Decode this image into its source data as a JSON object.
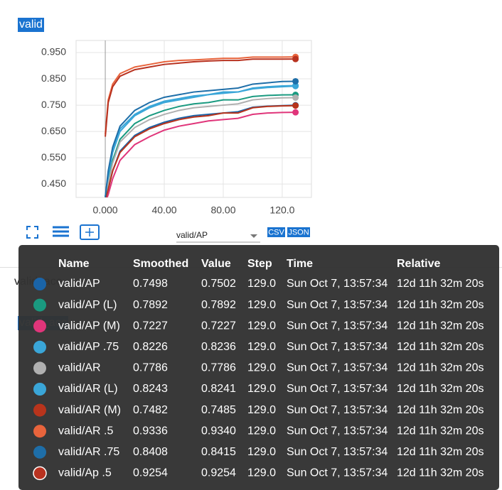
{
  "card": {
    "title": "valid",
    "run_select": "valid/AP",
    "csv": "CSV",
    "json": "JSON"
  },
  "second_card": {
    "title": "valid_acc"
  },
  "chart_data": {
    "type": "line",
    "x": [
      0,
      2,
      5,
      10,
      20,
      30,
      40,
      50,
      60,
      70,
      80,
      90,
      100,
      110,
      120,
      129
    ],
    "xlim": [
      -19.8,
      139.8
    ],
    "xticks": [
      {
        "value": 0,
        "label": "0.000"
      },
      {
        "value": 40,
        "label": "40.00"
      },
      {
        "value": 80,
        "label": "80.00"
      },
      {
        "value": 120,
        "label": "120.0"
      }
    ],
    "ylim": [
      0.399,
      0.996
    ],
    "yticks": [
      {
        "value": 0.45,
        "label": "0.450"
      },
      {
        "value": 0.55,
        "label": "0.550"
      },
      {
        "value": 0.65,
        "label": "0.650"
      },
      {
        "value": 0.75,
        "label": "0.750"
      },
      {
        "value": 0.85,
        "label": "0.850"
      },
      {
        "value": 0.95,
        "label": "0.950"
      }
    ],
    "grid": true,
    "series": [
      {
        "name": "valid/AP",
        "color": "#1a64a8",
        "values": [
          0.39,
          0.43,
          0.5,
          0.575,
          0.635,
          0.665,
          0.685,
          0.7,
          0.71,
          0.715,
          0.72,
          0.725,
          0.742,
          0.746,
          0.748,
          0.7498
        ]
      },
      {
        "name": "valid/AP (L)",
        "color": "#1a9a80",
        "values": [
          0.4,
          0.46,
          0.54,
          0.62,
          0.68,
          0.71,
          0.73,
          0.745,
          0.755,
          0.76,
          0.77,
          0.77,
          0.783,
          0.787,
          0.789,
          0.7892
        ]
      },
      {
        "name": "valid/AP (M)",
        "color": "#e0357a",
        "values": [
          0.38,
          0.41,
          0.47,
          0.54,
          0.6,
          0.63,
          0.655,
          0.67,
          0.68,
          0.69,
          0.695,
          0.7,
          0.715,
          0.72,
          0.722,
          0.7227
        ]
      },
      {
        "name": "valid/AP .75",
        "color": "#3aa6d8",
        "values": [
          0.4,
          0.48,
          0.57,
          0.65,
          0.71,
          0.74,
          0.76,
          0.77,
          0.78,
          0.79,
          0.795,
          0.8,
          0.812,
          0.817,
          0.82,
          0.8226
        ]
      },
      {
        "name": "valid/AR",
        "color": "#b0b0b0",
        "values": [
          0.4,
          0.45,
          0.53,
          0.61,
          0.665,
          0.695,
          0.715,
          0.73,
          0.74,
          0.745,
          0.75,
          0.755,
          0.77,
          0.775,
          0.778,
          0.7786
        ]
      },
      {
        "name": "valid/AR (L)",
        "color": "#3aa6d8",
        "values": [
          0.4,
          0.49,
          0.58,
          0.66,
          0.715,
          0.745,
          0.765,
          0.775,
          0.785,
          0.79,
          0.8,
          0.8,
          0.815,
          0.82,
          0.823,
          0.8243
        ]
      },
      {
        "name": "valid/AR (M)",
        "color": "#b8341c",
        "values": [
          0.39,
          0.43,
          0.5,
          0.57,
          0.63,
          0.66,
          0.68,
          0.695,
          0.705,
          0.71,
          0.72,
          0.72,
          0.74,
          0.745,
          0.747,
          0.7482
        ]
      },
      {
        "name": "valid/AR .5",
        "color": "#e8643c",
        "values": [
          0.64,
          0.77,
          0.83,
          0.87,
          0.895,
          0.905,
          0.915,
          0.92,
          0.922,
          0.925,
          0.928,
          0.928,
          0.933,
          0.933,
          0.933,
          0.9336
        ]
      },
      {
        "name": "valid/AR .75",
        "color": "#1e6ea8",
        "values": [
          0.4,
          0.5,
          0.59,
          0.67,
          0.73,
          0.76,
          0.78,
          0.79,
          0.8,
          0.805,
          0.81,
          0.815,
          0.83,
          0.835,
          0.84,
          0.8408
        ]
      },
      {
        "name": "valid/Ap .5",
        "color": "#b83220",
        "values": [
          0.63,
          0.76,
          0.82,
          0.86,
          0.885,
          0.895,
          0.905,
          0.91,
          0.915,
          0.918,
          0.92,
          0.92,
          0.925,
          0.925,
          0.925,
          0.9254
        ]
      }
    ]
  },
  "tooltip": {
    "header": [
      "Name",
      "Smoothed",
      "Value",
      "Step",
      "Time",
      "Relative"
    ],
    "rows": [
      [
        "valid/AP",
        "0.7498",
        "0.7502",
        "129.0",
        "Sun Oct 7, 13:57:34",
        "12d 11h 32m 20s"
      ],
      [
        "valid/AP (L)",
        "0.7892",
        "0.7892",
        "129.0",
        "Sun Oct 7, 13:57:34",
        "12d 11h 32m 20s"
      ],
      [
        "valid/AP (M)",
        "0.7227",
        "0.7227",
        "129.0",
        "Sun Oct 7, 13:57:34",
        "12d 11h 32m 20s"
      ],
      [
        "valid/AP .75",
        "0.8226",
        "0.8236",
        "129.0",
        "Sun Oct 7, 13:57:34",
        "12d 11h 32m 20s"
      ],
      [
        "valid/AR",
        "0.7786",
        "0.7786",
        "129.0",
        "Sun Oct 7, 13:57:34",
        "12d 11h 32m 20s"
      ],
      [
        "valid/AR (L)",
        "0.8243",
        "0.8241",
        "129.0",
        "Sun Oct 7, 13:57:34",
        "12d 11h 32m 20s"
      ],
      [
        "valid/AR (M)",
        "0.7482",
        "0.7485",
        "129.0",
        "Sun Oct 7, 13:57:34",
        "12d 11h 32m 20s"
      ],
      [
        "valid/AR .5",
        "0.9336",
        "0.9340",
        "129.0",
        "Sun Oct 7, 13:57:34",
        "12d 11h 32m 20s"
      ],
      [
        "valid/AR .75",
        "0.8408",
        "0.8415",
        "129.0",
        "Sun Oct 7, 13:57:34",
        "12d 11h 32m 20s"
      ],
      [
        "valid/Ap .5",
        "0.9254",
        "0.9254",
        "129.0",
        "Sun Oct 7, 13:57:34",
        "12d 11h 32m 20s"
      ]
    ]
  }
}
